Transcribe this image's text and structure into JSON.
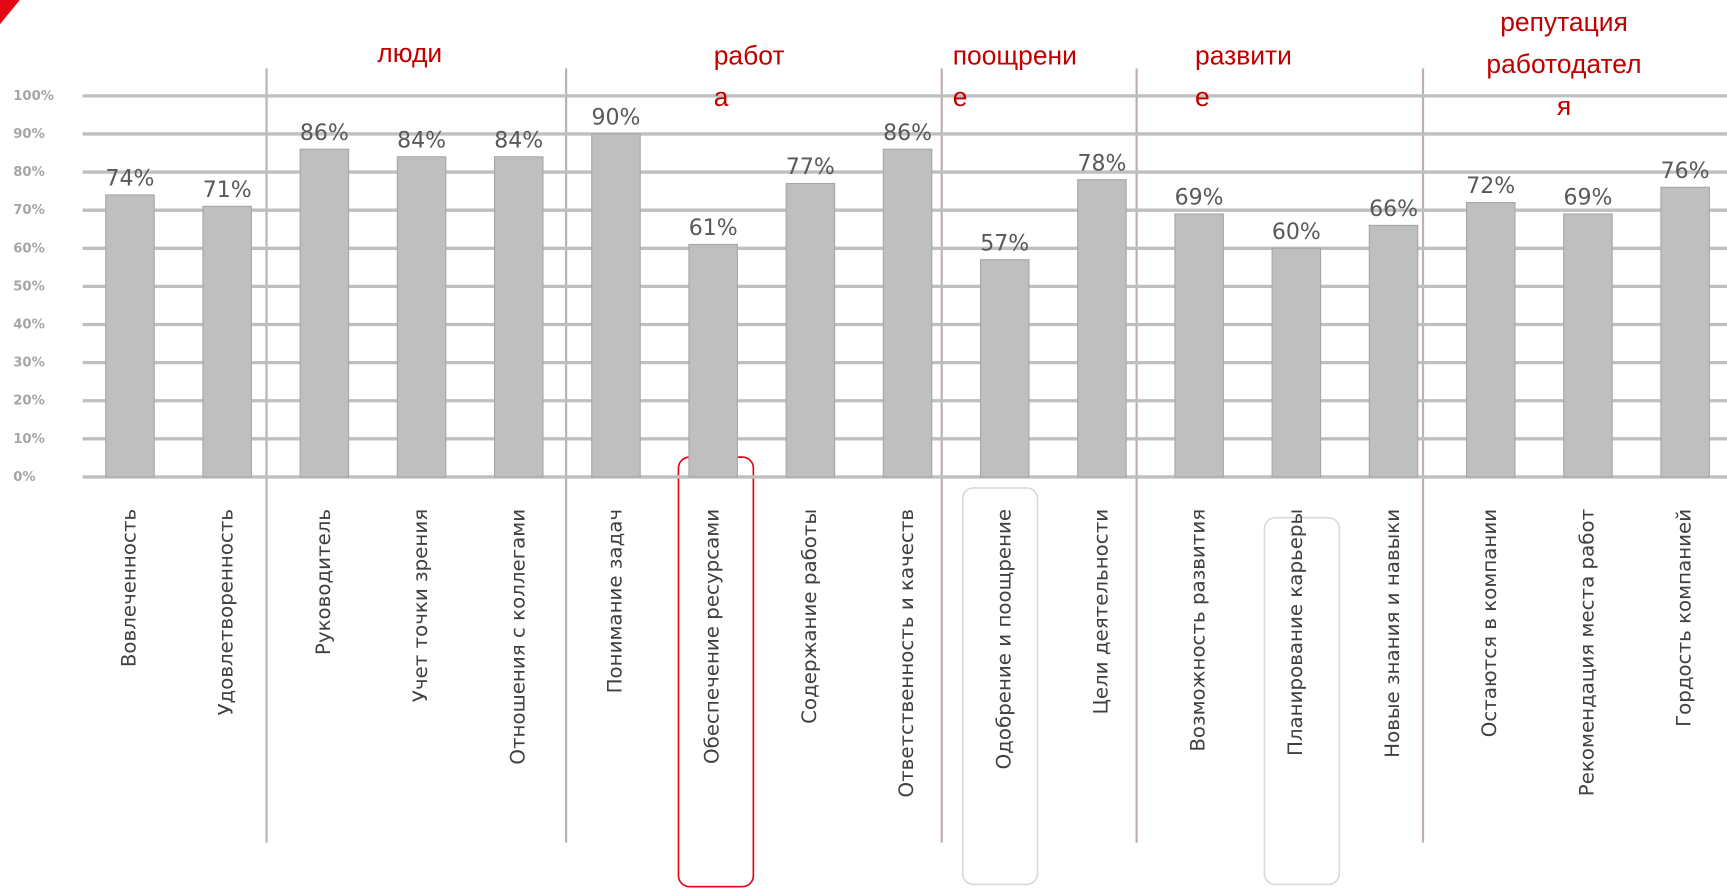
{
  "chart_data": {
    "type": "bar",
    "categories": [
      "Вовлеченность",
      "Удовлетворенность",
      "Руководитель",
      "Учет точки зрения",
      "Отношения с коллегами",
      "Понимание задач",
      "Обеспечение ресурсами",
      "Содержание работы",
      "Ответственность и качеств",
      "Одобрение и поощрение",
      "Цели деятельности",
      "Возможность развития",
      "Планирование карьеры",
      "Новые знания и навыки",
      "Остаются в компании",
      "Рекомендация места работ",
      "Гордость компанией"
    ],
    "values": [
      74,
      71,
      86,
      84,
      84,
      90,
      61,
      77,
      86,
      57,
      78,
      69,
      60,
      66,
      72,
      69,
      76
    ],
    "value_labels": [
      "74%",
      "71%",
      "86%",
      "84%",
      "84%",
      "90%",
      "61%",
      "77%",
      "86%",
      "57%",
      "78%",
      "69%",
      "60%",
      "66%",
      "72%",
      "69%",
      "76%"
    ],
    "color": "#bfbfbf",
    "groups": [
      [
        "люди"
      ],
      [
        "работ",
        "а"
      ],
      [
        "поощрени",
        "е"
      ],
      [
        "развити",
        "е"
      ],
      [
        "репутация",
        "работодател",
        "я"
      ]
    ],
    "ylim": [
      0,
      100
    ],
    "yticks": [
      {
        "value": 0,
        "label": "0%"
      },
      {
        "value": 10,
        "label": "10%"
      },
      {
        "value": 20,
        "label": "20%"
      },
      {
        "value": 30,
        "label": "30%"
      },
      {
        "value": 40,
        "label": "40%"
      },
      {
        "value": 50,
        "label": "50%"
      },
      {
        "value": 60,
        "label": "60%"
      },
      {
        "value": 70,
        "label": "70%"
      },
      {
        "value": 80,
        "label": "80%"
      },
      {
        "value": 90,
        "label": "90%"
      },
      {
        "value": 100,
        "label": "100%"
      }
    ],
    "grid": true
  }
}
